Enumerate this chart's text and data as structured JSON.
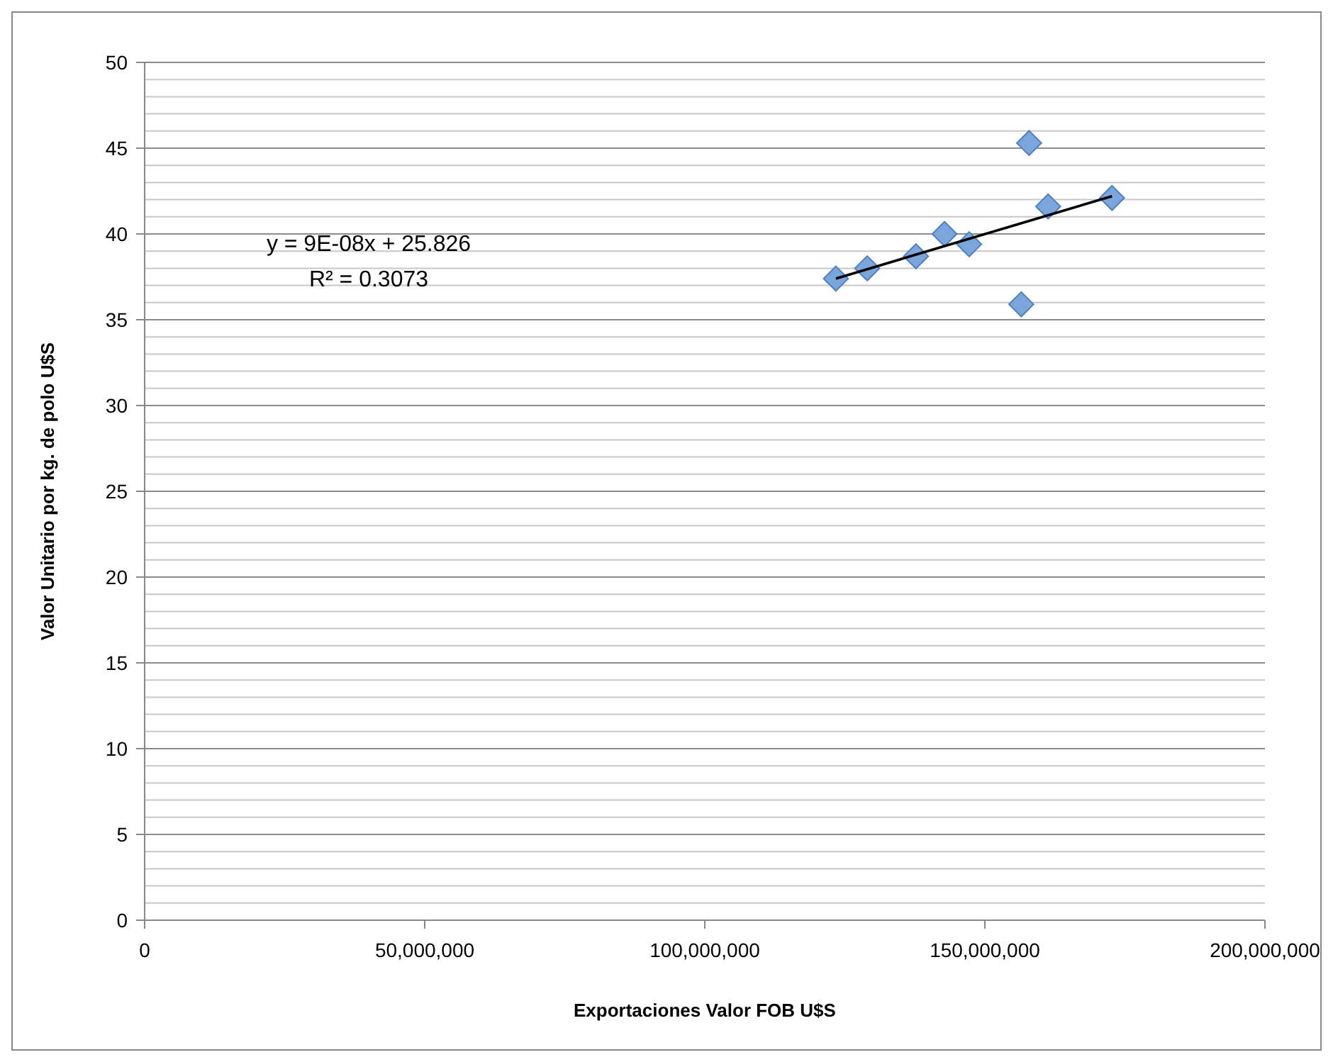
{
  "chart_data": {
    "type": "scatter",
    "xlabel": "Exportaciones Valor FOB U$S",
    "ylabel": "Valor Unitario por kg. de polo U$S",
    "series": [
      {
        "color": "#7aa6dc",
        "x": [
          123400000,
          129000000,
          137700000,
          142800000,
          147200000,
          156500000,
          157900000,
          161300000,
          172700000
        ],
        "values": [
          37.4,
          38.0,
          38.7,
          40.0,
          39.4,
          35.9,
          45.3,
          41.6,
          42.1
        ]
      },
      {
        "type": "line",
        "color": "#000000",
        "marker": "none",
        "x": [
          123400000,
          172700000
        ],
        "values": [
          37.4,
          42.2
        ]
      }
    ],
    "xlim": [
      0,
      200000000
    ],
    "xticks": [
      {
        "value": 0,
        "label": "0"
      },
      {
        "value": 50000000,
        "label": "50,000,000"
      },
      {
        "value": 100000000,
        "label": "100,000,000"
      },
      {
        "value": 150000000,
        "label": "150,000,000"
      },
      {
        "value": 200000000,
        "label": "200,000,000"
      }
    ],
    "ylim": [
      0,
      50
    ],
    "yticks": [
      0,
      5,
      10,
      15,
      20,
      25,
      30,
      35,
      40,
      45,
      50
    ],
    "grid": "y",
    "marker": "diamond",
    "annotations": [
      "y = 9E-08x + 25.826",
      "R² = 0.3073"
    ]
  }
}
